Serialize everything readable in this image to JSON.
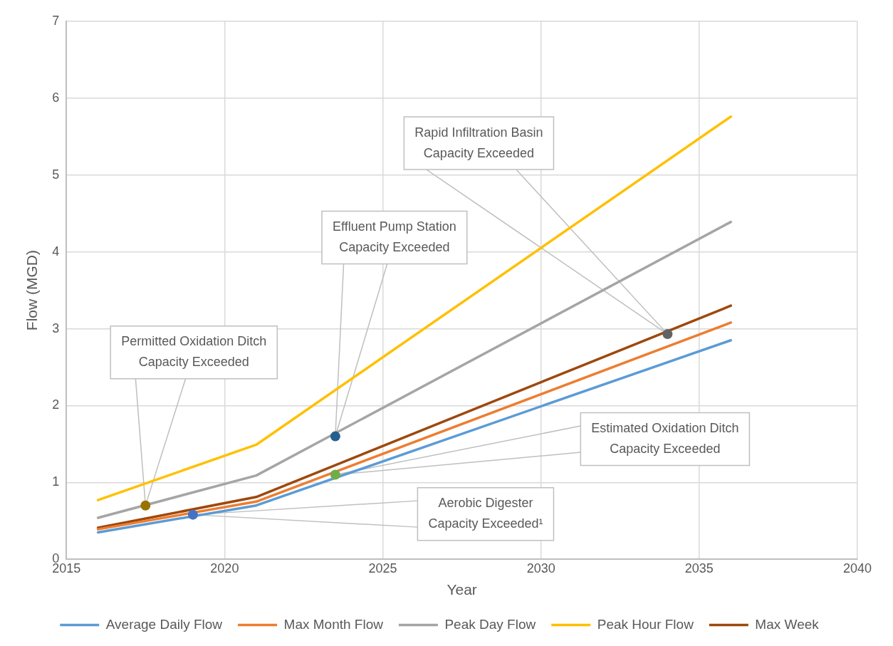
{
  "chart_data": {
    "type": "line",
    "xlabel": "Year",
    "ylabel": "Flow (MGD)",
    "xlim": [
      2015,
      2040
    ],
    "xticks": [
      2015,
      2020,
      2025,
      2030,
      2035,
      2040
    ],
    "ylim": [
      0,
      7
    ],
    "yticks": [
      0,
      1,
      2,
      3,
      4,
      5,
      6,
      7
    ],
    "grid": true,
    "legend": "bottom",
    "marker": "none",
    "line_style": "solid",
    "series": [
      {
        "name": "Average Daily Flow",
        "color": "#5b9bd5",
        "x": [
          2016,
          2021,
          2036
        ],
        "values": [
          0.35,
          0.7,
          2.85
        ]
      },
      {
        "name": "Max Month Flow",
        "color": "#ed7d31",
        "x": [
          2016,
          2021,
          2036
        ],
        "values": [
          0.39,
          0.75,
          3.08
        ]
      },
      {
        "name": "Peak Day Flow",
        "color": "#a5a5a5",
        "x": [
          2016,
          2021,
          2036
        ],
        "values": [
          0.54,
          1.09,
          4.39
        ]
      },
      {
        "name": "Peak Hour Flow",
        "color": "#ffc000",
        "x": [
          2016,
          2021,
          2036
        ],
        "values": [
          0.77,
          1.49,
          5.76
        ]
      },
      {
        "name": "Max Week",
        "color": "#9e480e",
        "x": [
          2016,
          2021,
          2036
        ],
        "values": [
          0.41,
          0.81,
          3.3
        ]
      },
      {
        "type": "scatter",
        "marker": "circle",
        "color": "#997300",
        "x": [
          2017.5
        ],
        "values": [
          0.7
        ]
      },
      {
        "type": "scatter",
        "marker": "circle",
        "color": "#255e91",
        "x": [
          2023.5
        ],
        "values": [
          1.6
        ]
      },
      {
        "type": "scatter",
        "marker": "circle",
        "color": "#636363",
        "x": [
          2034
        ],
        "values": [
          2.93
        ]
      },
      {
        "type": "scatter",
        "marker": "circle",
        "color": "#70ad47",
        "x": [
          2023.5
        ],
        "values": [
          1.1
        ]
      },
      {
        "type": "scatter",
        "marker": "circle",
        "color": "#4472c4",
        "x": [
          2019
        ],
        "values": [
          0.58
        ]
      }
    ],
    "annotations": [
      "Permitted Oxidation Ditch Capacity Exceeded",
      "Effluent Pump Station Capacity Exceeded",
      "Rapid Infiltration Basin Capacity Exceeded",
      "Estimated Oxidation Ditch Capacity Exceeded",
      "Aerobic Digester Capacity Exceeded¹"
    ]
  }
}
